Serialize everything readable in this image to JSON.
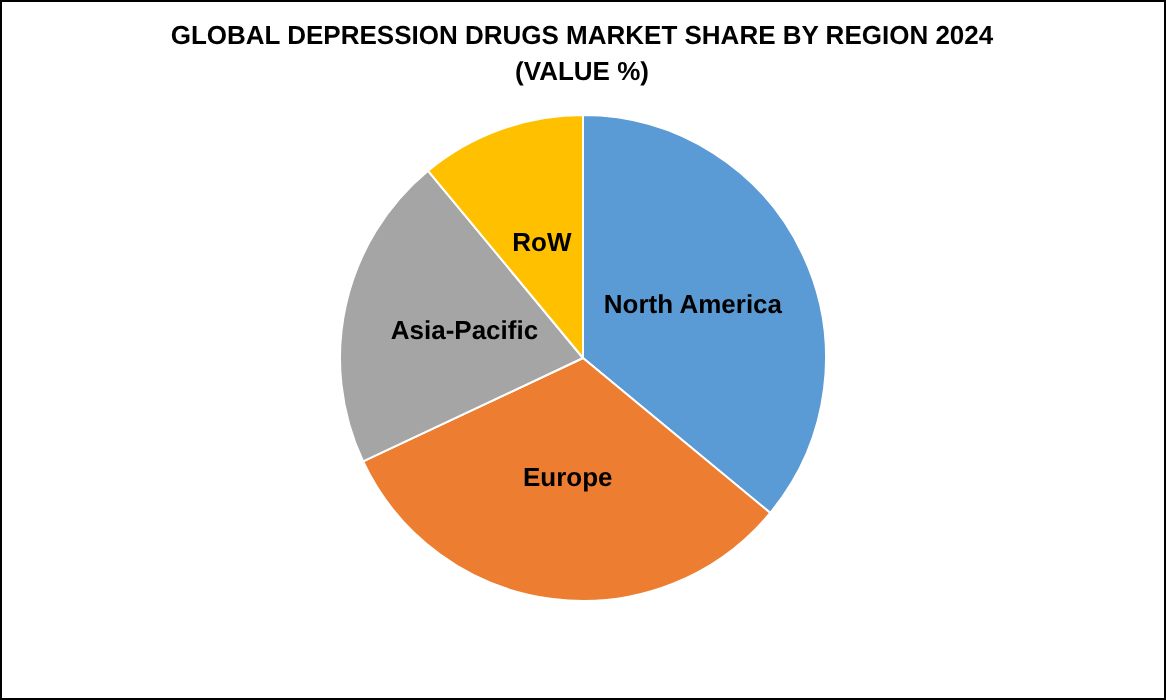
{
  "chart_data": {
    "type": "pie",
    "title": "GLOBAL DEPRESSION DRUGS MARKET SHARE BY REGION 2024 (VALUE %)",
    "categories": [
      "North America",
      "Europe",
      "Asia-Pacific",
      "RoW"
    ],
    "values": [
      36,
      32,
      21,
      11
    ],
    "colors": [
      "#5b9bd5",
      "#ed7d31",
      "#a5a5a5",
      "#ffc000"
    ],
    "legend": false
  }
}
